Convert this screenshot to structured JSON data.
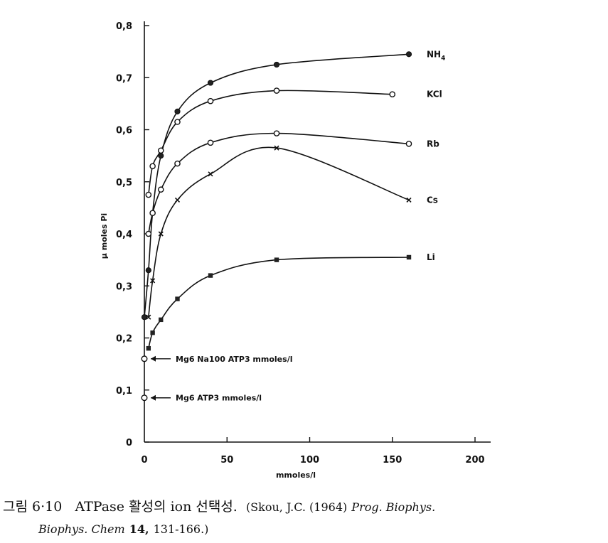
{
  "chart_data": {
    "type": "line",
    "xlabel": "mmoles/l",
    "ylabel": "μ moles Pi",
    "xlim": [
      0,
      200
    ],
    "ylim": [
      0,
      0.8
    ],
    "x_ticks": [
      {
        "value": 0,
        "label": "0"
      },
      {
        "value": 50,
        "label": "50"
      },
      {
        "value": 100,
        "label": "100"
      },
      {
        "value": 150,
        "label": "150"
      },
      {
        "value": 200,
        "label": "200"
      }
    ],
    "y_ticks": [
      {
        "value": 0,
        "label": "0"
      },
      {
        "value": 0.1,
        "label": "0,1"
      },
      {
        "value": 0.2,
        "label": "0,2"
      },
      {
        "value": 0.3,
        "label": "0,3"
      },
      {
        "value": 0.4,
        "label": "0,4"
      },
      {
        "value": 0.5,
        "label": "0,5"
      },
      {
        "value": 0.6,
        "label": "0,6"
      },
      {
        "value": 0.7,
        "label": "0,7"
      },
      {
        "value": 0.8,
        "label": "0,8"
      }
    ],
    "series": [
      {
        "name": "NH4",
        "name_main": "NH",
        "name_sub": "4",
        "marker": "filled-circle",
        "x": [
          0,
          2.5,
          5,
          10,
          20,
          40,
          80,
          160
        ],
        "y": [
          0.24,
          0.33,
          0.44,
          0.55,
          0.635,
          0.69,
          0.725,
          0.745
        ]
      },
      {
        "name": "KCl",
        "marker": "open-circle",
        "x": [
          2.5,
          5,
          10,
          20,
          40,
          80,
          150
        ],
        "y": [
          0.475,
          0.53,
          0.56,
          0.615,
          0.655,
          0.675,
          0.668
        ]
      },
      {
        "name": "Rb",
        "marker": "open-circle",
        "x": [
          2.5,
          5,
          10,
          20,
          40,
          80,
          160
        ],
        "y": [
          0.4,
          0.44,
          0.485,
          0.535,
          0.575,
          0.593,
          0.573
        ]
      },
      {
        "name": "Cs",
        "marker": "cross",
        "x": [
          2.5,
          5,
          10,
          20,
          40,
          80,
          160
        ],
        "y": [
          0.24,
          0.31,
          0.4,
          0.465,
          0.515,
          0.565,
          0.465
        ]
      },
      {
        "name": "Li",
        "marker": "filled-square",
        "x": [
          2.5,
          5,
          10,
          20,
          40,
          80,
          160
        ],
        "y": [
          0.18,
          0.21,
          0.235,
          0.275,
          0.32,
          0.35,
          0.355
        ]
      }
    ],
    "annotations": [
      {
        "x": 0,
        "y": 0.16,
        "text": "Mg6  Na100  ATP3  mmoles/l"
      },
      {
        "x": 0,
        "y": 0.085,
        "text": "Mg6  ATP3  mmoles/l"
      }
    ]
  },
  "caption": {
    "label": "그림 6·10",
    "title": "ATPase 활성의 ion 선택성.",
    "ref_prefix": "(Skou, J.C. (1964)",
    "journal_line1": "Prog. Biophys.",
    "journal_line2": "Biophys. Chem",
    "volume": "14,",
    "pages": "131-166.)"
  }
}
